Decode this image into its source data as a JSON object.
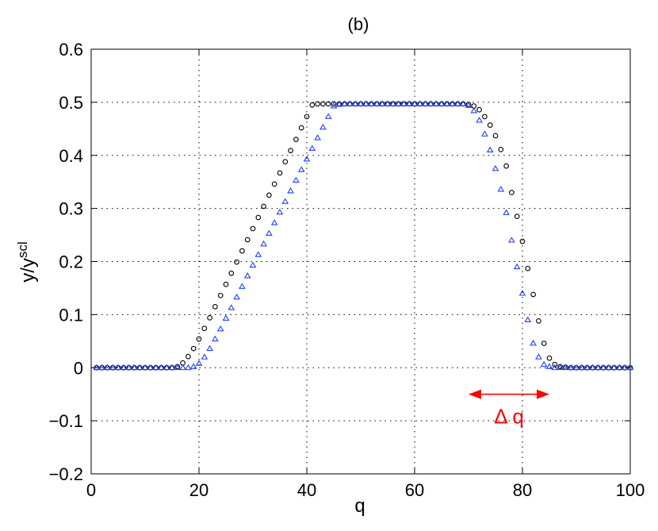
{
  "chart_data": {
    "type": "scatter",
    "title": "(b)",
    "xlabel": "q",
    "ylabel": "y/y",
    "ylabel_superscript": "scl",
    "xlim": [
      0,
      100
    ],
    "ylim": [
      -0.2,
      0.6
    ],
    "xticks": [
      "0",
      "20",
      "40",
      "60",
      "80",
      "100"
    ],
    "yticks": [
      "−0.2",
      "−0.1",
      "0",
      "0.1",
      "0.2",
      "0.3",
      "0.4",
      "0.5",
      "0.6"
    ],
    "grid": true,
    "colors": {
      "circles": "#000000",
      "triangles": "#1f3fff",
      "annotation": "#ff0000"
    },
    "annotation": {
      "text": "Δ q",
      "arrow_from_x": 70,
      "arrow_to_x": 85,
      "y": -0.05
    },
    "series": [
      {
        "marker": "circle",
        "x": [
          1,
          2,
          3,
          4,
          5,
          6,
          7,
          8,
          9,
          10,
          11,
          12,
          13,
          14,
          15,
          16,
          17,
          18,
          19,
          20,
          21,
          22,
          23,
          24,
          25,
          26,
          27,
          28,
          29,
          30,
          31,
          32,
          33,
          34,
          35,
          36,
          37,
          38,
          39,
          40,
          41,
          42,
          43,
          44,
          45,
          46,
          47,
          48,
          49,
          50,
          51,
          52,
          53,
          54,
          55,
          56,
          57,
          58,
          59,
          60,
          61,
          62,
          63,
          64,
          65,
          66,
          67,
          68,
          69,
          70,
          71,
          72,
          73,
          74,
          75,
          76,
          77,
          78,
          79,
          80,
          81,
          82,
          83,
          84,
          85,
          86,
          87,
          88,
          89,
          90,
          91,
          92,
          93,
          94,
          95,
          96,
          97,
          98,
          99,
          100
        ],
        "y": [
          0,
          0,
          0,
          0,
          0,
          0,
          0,
          0,
          0,
          0,
          0,
          0,
          0,
          0,
          0,
          0.002,
          0.009,
          0.021,
          0.036,
          0.054,
          0.074,
          0.094,
          0.115,
          0.136,
          0.157,
          0.178,
          0.199,
          0.22,
          0.241,
          0.262,
          0.283,
          0.304,
          0.325,
          0.346,
          0.367,
          0.388,
          0.409,
          0.43,
          0.452,
          0.473,
          0.495,
          0.497,
          0.497,
          0.497,
          0.497,
          0.497,
          0.497,
          0.497,
          0.497,
          0.497,
          0.497,
          0.497,
          0.497,
          0.497,
          0.497,
          0.497,
          0.497,
          0.497,
          0.497,
          0.497,
          0.497,
          0.497,
          0.497,
          0.497,
          0.497,
          0.497,
          0.497,
          0.497,
          0.497,
          0.496,
          0.493,
          0.486,
          0.473,
          0.457,
          0.437,
          0.411,
          0.38,
          0.33,
          0.285,
          0.238,
          0.187,
          0.138,
          0.088,
          0.046,
          0.018,
          0.006,
          0.002,
          0.001,
          0,
          0,
          0,
          0,
          0,
          0,
          0,
          0,
          0,
          0,
          0,
          0
        ]
      },
      {
        "marker": "triangle",
        "x": [
          1,
          2,
          3,
          4,
          5,
          6,
          7,
          8,
          9,
          10,
          11,
          12,
          13,
          14,
          15,
          16,
          17,
          18,
          19,
          20,
          21,
          22,
          23,
          24,
          25,
          26,
          27,
          28,
          29,
          30,
          31,
          32,
          33,
          34,
          35,
          36,
          37,
          38,
          39,
          40,
          41,
          42,
          43,
          44,
          45,
          46,
          47,
          48,
          49,
          50,
          51,
          52,
          53,
          54,
          55,
          56,
          57,
          58,
          59,
          60,
          61,
          62,
          63,
          64,
          65,
          66,
          67,
          68,
          69,
          70,
          71,
          72,
          73,
          74,
          75,
          76,
          77,
          78,
          79,
          80,
          81,
          82,
          83,
          84,
          85,
          86,
          87,
          88,
          89,
          90,
          91,
          92,
          93,
          94,
          95,
          96,
          97,
          98,
          99,
          100
        ],
        "y": [
          0,
          0,
          0,
          0,
          0,
          0,
          0,
          0,
          0,
          0,
          0,
          0,
          0,
          0,
          0,
          0,
          0,
          0,
          0.002,
          0.008,
          0.02,
          0.036,
          0.054,
          0.073,
          0.093,
          0.113,
          0.133,
          0.153,
          0.173,
          0.193,
          0.213,
          0.233,
          0.253,
          0.273,
          0.293,
          0.313,
          0.333,
          0.353,
          0.373,
          0.393,
          0.413,
          0.433,
          0.453,
          0.473,
          0.493,
          0.496,
          0.497,
          0.497,
          0.497,
          0.497,
          0.497,
          0.497,
          0.497,
          0.497,
          0.497,
          0.497,
          0.497,
          0.497,
          0.497,
          0.497,
          0.497,
          0.497,
          0.497,
          0.497,
          0.497,
          0.497,
          0.497,
          0.497,
          0.497,
          0.494,
          0.484,
          0.466,
          0.44,
          0.41,
          0.375,
          0.336,
          0.292,
          0.24,
          0.19,
          0.14,
          0.09,
          0.046,
          0.02,
          0.006,
          0.002,
          0,
          0,
          0,
          0,
          0,
          0,
          0,
          0,
          0,
          0,
          0,
          0,
          0,
          0,
          0
        ]
      }
    ]
  }
}
